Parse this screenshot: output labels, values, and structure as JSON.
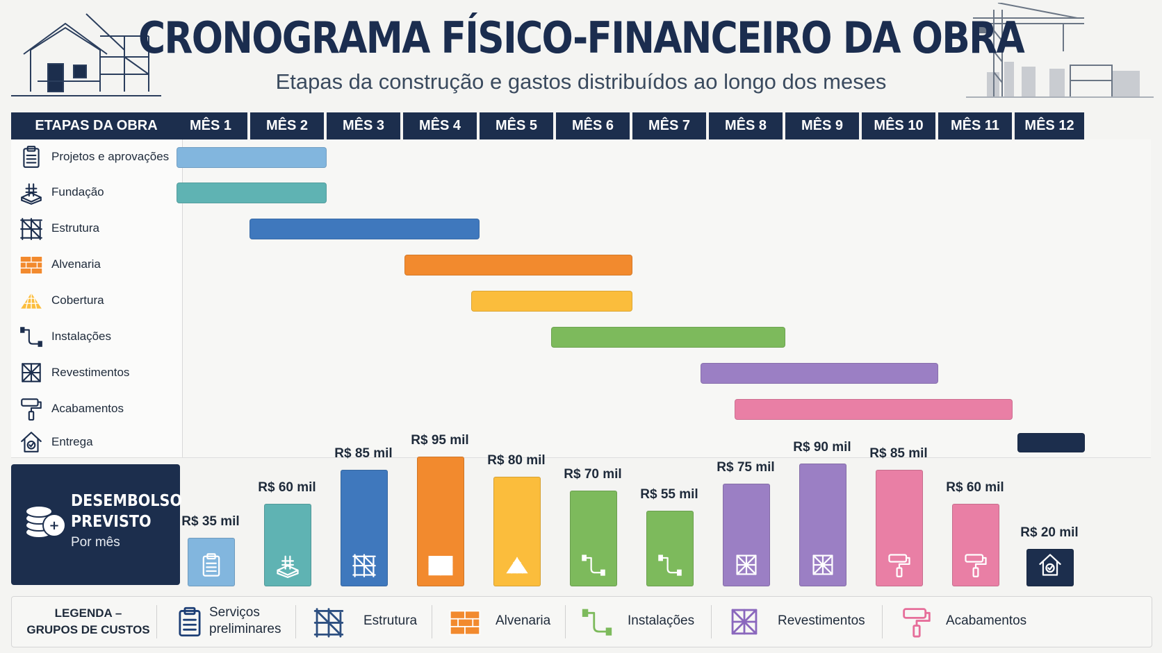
{
  "header": {
    "title": "CRONOGRAMA FÍSICO-FINANCEIRO DA OBRA",
    "subtitle": "Etapas da construção e gastos distribuídos ao longo dos meses"
  },
  "colors": {
    "navy": "#1c2e4d",
    "projetos": "#82b6de",
    "fundacao": "#5fb3b3",
    "estrutura": "#3f78bd",
    "alvenaria": "#f28a2e",
    "cobertura": "#fbbd3c",
    "instalacoes": "#7dba5c",
    "revestimentos": "#9b7fc4",
    "acabamentos": "#e97fa5",
    "entrega": "#1c2e4d"
  },
  "chart_data": [
    {
      "type": "gantt",
      "stage_header": "ETAPAS DA OBRA",
      "months": [
        "MÊS 1",
        "MÊS 2",
        "MÊS 3",
        "MÊS 4",
        "MÊS 5",
        "MÊS 6",
        "MÊS 7",
        "MÊS 8",
        "MÊS 9",
        "MÊS 10",
        "MÊS 11",
        "MÊS 12"
      ],
      "tasks": [
        {
          "name": "Projetos e aprovações",
          "icon": "clipboard-icon",
          "start": 1.0,
          "end": 2.98,
          "color": "#82b6de"
        },
        {
          "name": "Fundação",
          "icon": "foundation-icon",
          "start": 1.0,
          "end": 2.98,
          "color": "#5fb3b3"
        },
        {
          "name": "Estrutura",
          "icon": "scaffold-icon",
          "start": 1.95,
          "end": 4.98,
          "color": "#3f78bd"
        },
        {
          "name": "Alvenaria",
          "icon": "bricks-icon",
          "start": 3.98,
          "end": 6.98,
          "color": "#f28a2e"
        },
        {
          "name": "Cobertura",
          "icon": "roof-tiles-icon",
          "start": 4.85,
          "end": 6.98,
          "color": "#fbbd3c"
        },
        {
          "name": "Instalações",
          "icon": "pipe-icon",
          "start": 5.9,
          "end": 8.98,
          "color": "#7dba5c"
        },
        {
          "name": "Revestimentos",
          "icon": "tile-icon",
          "start": 7.85,
          "end": 10.98,
          "color": "#9b7fc4"
        },
        {
          "name": "Acabamentos",
          "icon": "paint-roller-icon",
          "start": 8.3,
          "end": 11.95,
          "color": "#e97fa5"
        },
        {
          "name": "Entrega",
          "icon": "house-check-icon",
          "start": 12.0,
          "end": 12.9,
          "color": "#1c2e4d"
        }
      ]
    },
    {
      "type": "bar",
      "title": "DESEMBOLSO PREVISTO",
      "subtitle": "Por mês",
      "categories": [
        "MÊS 1",
        "MÊS 2",
        "MÊS 3",
        "MÊS 4",
        "MÊS 5",
        "MÊS 6",
        "MÊS 7",
        "MÊS 8",
        "MÊS 9",
        "MÊS 10",
        "MÊS 11",
        "MÊS 12"
      ],
      "values": [
        35,
        60,
        85,
        95,
        80,
        70,
        55,
        75,
        90,
        85,
        60,
        20
      ],
      "labels": [
        "R$ 35 mil",
        "R$ 60 mil",
        "R$ 85 mil",
        "R$ 95 mil",
        "R$ 80 mil",
        "R$ 70 mil",
        "R$ 55 mil",
        "R$ 75 mil",
        "R$ 90 mil",
        "R$ 85 mil",
        "R$ 60 mil",
        "R$ 20 mil"
      ],
      "colors": [
        "#82b6de",
        "#5fb3b3",
        "#3f78bd",
        "#f28a2e",
        "#fbbd3c",
        "#7dba5c",
        "#7dba5c",
        "#9b7fc4",
        "#9b7fc4",
        "#e97fa5",
        "#e97fa5",
        "#1c2e4d"
      ],
      "icons": [
        "clipboard-icon",
        "foundation-icon",
        "scaffold-icon",
        "bricks-icon",
        "roof-tiles-icon",
        "pipe-icon",
        "pipe-icon",
        "tile-icon",
        "tile-icon",
        "paint-roller-icon",
        "paint-roller-icon",
        "house-check-icon"
      ],
      "ylim": [
        0,
        100
      ]
    }
  ],
  "legend": {
    "title": "LEGENDA –\nGRUPOS DE CUSTOS",
    "items": [
      {
        "label": "Serviços\npreliminares",
        "icon": "clipboard-icon"
      },
      {
        "label": "Estrutura",
        "icon": "scaffold-icon"
      },
      {
        "label": "Alvenaria",
        "icon": "bricks-icon"
      },
      {
        "label": "Instalações",
        "icon": "pipe-icon"
      },
      {
        "label": "Revestimentos",
        "icon": "tile-icon"
      },
      {
        "label": "Acabamentos",
        "icon": "paint-roller-icon"
      }
    ]
  }
}
